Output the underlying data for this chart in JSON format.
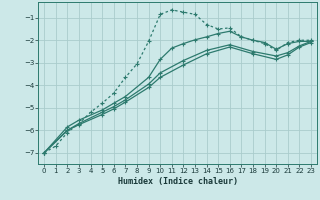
{
  "xlabel": "Humidex (Indice chaleur)",
  "xlim": [
    -0.5,
    23.5
  ],
  "ylim": [
    -7.5,
    -0.3
  ],
  "yticks": [
    -7,
    -6,
    -5,
    -4,
    -3,
    -2,
    -1
  ],
  "xticks": [
    0,
    1,
    2,
    3,
    4,
    5,
    6,
    7,
    8,
    9,
    10,
    11,
    12,
    13,
    14,
    15,
    16,
    17,
    18,
    19,
    20,
    21,
    22,
    23
  ],
  "bg_color": "#cce8e8",
  "grid_color": "#aacccc",
  "line_color": "#2d7a6e",
  "lines": [
    {
      "x": [
        0,
        1,
        2,
        3,
        4,
        5,
        6,
        7,
        8,
        9,
        10,
        11,
        12,
        13,
        14,
        15,
        16,
        17,
        18,
        19,
        20,
        21,
        22,
        23
      ],
      "y": [
        -7.0,
        -6.7,
        -6.1,
        -5.7,
        -5.2,
        -4.8,
        -4.35,
        -3.65,
        -3.05,
        -2.05,
        -0.85,
        -0.65,
        -0.75,
        -0.85,
        -1.3,
        -1.5,
        -1.45,
        -1.85,
        -2.0,
        -2.15,
        -2.45,
        -2.1,
        -2.0,
        -2.0
      ],
      "style": "dotted",
      "marker": "+"
    },
    {
      "x": [
        0,
        2,
        3,
        5,
        6,
        7,
        9,
        10,
        11,
        12,
        13,
        14,
        15,
        16,
        17,
        18,
        19,
        20,
        21,
        22,
        23
      ],
      "y": [
        -7.0,
        -5.85,
        -5.55,
        -5.1,
        -4.8,
        -4.5,
        -3.65,
        -2.85,
        -2.35,
        -2.15,
        -1.98,
        -1.85,
        -1.7,
        -1.6,
        -1.85,
        -2.0,
        -2.1,
        -2.4,
        -2.15,
        -2.05,
        -2.05
      ],
      "style": "solid",
      "marker": "+"
    },
    {
      "x": [
        0,
        2,
        3,
        5,
        6,
        7,
        9,
        10,
        12,
        14,
        16,
        18,
        20,
        21,
        22,
        23
      ],
      "y": [
        -7.0,
        -6.0,
        -5.7,
        -5.2,
        -4.95,
        -4.65,
        -3.95,
        -3.45,
        -2.9,
        -2.45,
        -2.2,
        -2.5,
        -2.7,
        -2.55,
        -2.25,
        -2.05
      ],
      "style": "solid",
      "marker": "+"
    },
    {
      "x": [
        0,
        2,
        3,
        5,
        6,
        7,
        9,
        10,
        12,
        14,
        16,
        18,
        20,
        21,
        22,
        23
      ],
      "y": [
        -7.0,
        -6.0,
        -5.75,
        -5.3,
        -5.05,
        -4.75,
        -4.1,
        -3.65,
        -3.1,
        -2.6,
        -2.3,
        -2.6,
        -2.85,
        -2.65,
        -2.3,
        -2.1
      ],
      "style": "solid",
      "marker": "+"
    }
  ]
}
